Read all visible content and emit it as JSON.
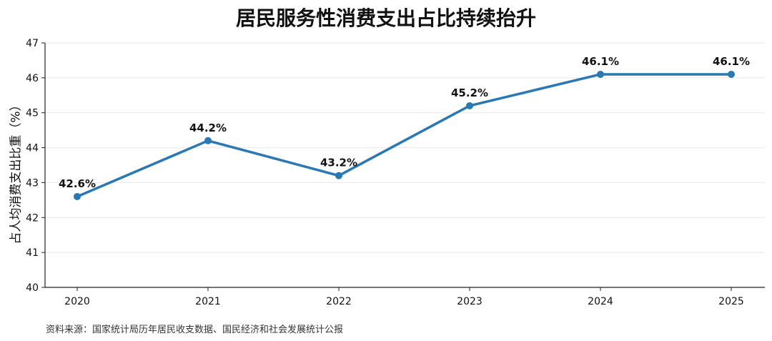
{
  "chart_data": {
    "type": "line",
    "title": "居民服务性消费支出占比持续抬升",
    "xlabel": "",
    "ylabel": "占人均消费支出比重（%）",
    "categories": [
      "2020",
      "2021",
      "2022",
      "2023",
      "2024",
      "2025"
    ],
    "series": [
      {
        "values": [
          42.6,
          44.2,
          43.2,
          45.2,
          46.1,
          46.1
        ],
        "labels": [
          "42.6%",
          "44.2%",
          "43.2%",
          "45.2%",
          "46.1%",
          "46.1%"
        ],
        "color": "#2a78b4"
      }
    ],
    "ylim": [
      40,
      47
    ],
    "yticks": [
      "40",
      "41",
      "42",
      "43",
      "44",
      "45",
      "46",
      "47"
    ],
    "grid": true,
    "legend": "none"
  },
  "source_note": "资料来源：国家统计局历年居民收支数据、国民经济和社会发展统计公报"
}
